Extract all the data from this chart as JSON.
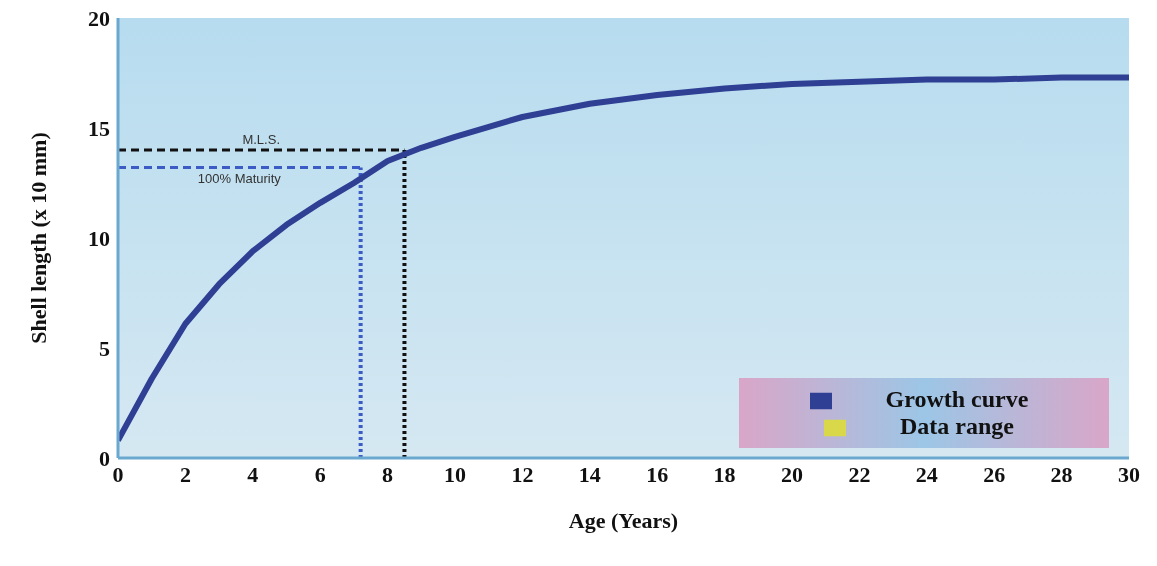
{
  "chart_data": {
    "type": "line",
    "xlabel": "Age (Years)",
    "ylabel": "Shell length (x 10 mm)",
    "x": [
      0,
      1,
      2,
      3,
      4,
      5,
      6,
      7,
      8,
      9,
      10,
      12,
      14,
      16,
      18,
      20,
      22,
      24,
      26,
      28,
      30
    ],
    "series": [
      {
        "name": "Growth curve",
        "color": "#2e3f94",
        "values": [
          0.8,
          3.6,
          6.1,
          7.9,
          9.4,
          10.6,
          11.6,
          12.5,
          13.5,
          14.1,
          14.6,
          15.5,
          16.1,
          16.5,
          16.8,
          17.0,
          17.1,
          17.2,
          17.2,
          17.3,
          17.3
        ]
      },
      {
        "name": "Data range",
        "color": "#d8d84a",
        "values": [
          null,
          null,
          null,
          null,
          null,
          null,
          null,
          null,
          null,
          null,
          null,
          null,
          null,
          null,
          null,
          null,
          null,
          null,
          null,
          null,
          null
        ]
      }
    ],
    "xlim": [
      0,
      30
    ],
    "xticks": [
      0,
      2,
      4,
      6,
      8,
      10,
      12,
      14,
      16,
      18,
      20,
      22,
      24,
      26,
      28,
      30
    ],
    "ylim": [
      0,
      20
    ],
    "yticks": [
      0,
      5,
      10,
      15,
      20
    ],
    "ref_lines": [
      {
        "axis": "y",
        "value": 14,
        "label": "M.L.S.",
        "color": "#111111",
        "line_style": "dashed"
      },
      {
        "axis": "x",
        "value": 8.5,
        "color": "#111111",
        "line_style": "dotted"
      },
      {
        "axis": "y",
        "value": 13.2,
        "label": "100% Maturity",
        "color": "#3a5cc4",
        "line_style": "dashed"
      },
      {
        "axis": "x",
        "value": 7.2,
        "color": "#3a5cc4",
        "line_style": "dotted"
      }
    ],
    "grid": false,
    "legend": "bottom right",
    "marker": "none",
    "line_style": "solid"
  }
}
